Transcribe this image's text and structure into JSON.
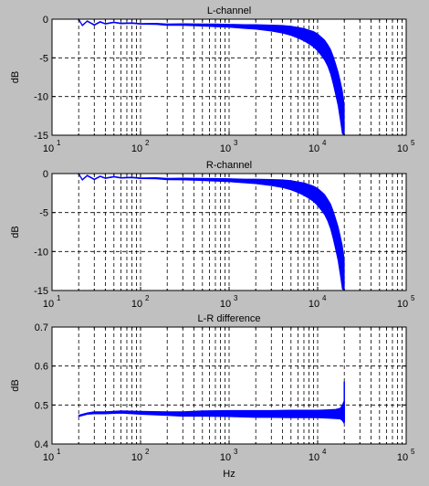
{
  "colors": {
    "figure_bg": "#c0c0c0",
    "axes_bg": "#ffffff",
    "trace": "#0000ff",
    "grid": "#000000"
  },
  "chart_data": [
    {
      "type": "line",
      "title": "L-channel",
      "xlabel": "",
      "ylabel": "dB",
      "xscale": "log",
      "xlim": [
        10,
        100000
      ],
      "ylim": [
        -15,
        0
      ],
      "xticks": [
        10,
        100,
        1000,
        10000,
        100000
      ],
      "yticks": [
        0,
        -5,
        -10,
        -15
      ],
      "ytick_labels": [
        "0",
        "-5",
        "-10",
        "-15"
      ],
      "grid": "dashed, major and minor x, major y",
      "series": [
        {
          "x": [
            20,
            22,
            25,
            30,
            35,
            40,
            50,
            60,
            80,
            100,
            150,
            200,
            300,
            500,
            700,
            1000,
            1500,
            2000,
            3000,
            4000,
            5000,
            6000,
            7000,
            8000,
            9000,
            10000,
            11000,
            12000,
            13000,
            14000,
            15000,
            16000,
            17000,
            18000,
            19000,
            20000
          ],
          "y": [
            0,
            -0.8,
            -0.25,
            -0.75,
            -0.35,
            -0.6,
            -0.4,
            -0.55,
            -0.5,
            -0.6,
            -0.6,
            -0.7,
            -0.7,
            -0.75,
            -0.8,
            -0.85,
            -0.95,
            -1.0,
            -1.15,
            -1.3,
            -1.5,
            -1.75,
            -2.0,
            -2.3,
            -2.6,
            -3.0,
            -3.5,
            -4.0,
            -4.7,
            -5.5,
            -6.6,
            -7.8,
            -9.0,
            -10.5,
            -12.0,
            -14.0
          ],
          "spread": [
            0.05,
            0.05,
            0.05,
            0.05,
            0.05,
            0.05,
            0.05,
            0.05,
            0.05,
            0.06,
            0.08,
            0.1,
            0.12,
            0.15,
            0.18,
            0.2,
            0.25,
            0.3,
            0.4,
            0.5,
            0.6,
            0.7,
            0.8,
            0.9,
            1.0,
            1.1,
            1.2,
            1.3,
            1.4,
            1.6,
            1.8,
            2.0,
            2.2,
            2.5,
            2.8,
            3.0
          ]
        }
      ]
    },
    {
      "type": "line",
      "title": "R-channel",
      "xlabel": "",
      "ylabel": "dB",
      "xscale": "log",
      "xlim": [
        10,
        100000
      ],
      "ylim": [
        -15,
        0
      ],
      "xticks": [
        10,
        100,
        1000,
        10000,
        100000
      ],
      "yticks": [
        0,
        -5,
        -10,
        -15
      ],
      "ytick_labels": [
        "0",
        "-5",
        "-10",
        "-15"
      ],
      "grid": "dashed, major and minor x, major y",
      "series": [
        {
          "x": [
            20,
            22,
            25,
            30,
            35,
            40,
            50,
            60,
            80,
            100,
            150,
            200,
            300,
            500,
            700,
            1000,
            1500,
            2000,
            3000,
            4000,
            5000,
            6000,
            7000,
            8000,
            9000,
            10000,
            11000,
            12000,
            13000,
            14000,
            15000,
            16000,
            17000,
            18000,
            19000,
            20000
          ],
          "y": [
            0,
            -0.8,
            -0.25,
            -0.75,
            -0.35,
            -0.6,
            -0.4,
            -0.55,
            -0.5,
            -0.6,
            -0.6,
            -0.7,
            -0.7,
            -0.75,
            -0.8,
            -0.85,
            -0.95,
            -1.0,
            -1.15,
            -1.3,
            -1.5,
            -1.75,
            -2.0,
            -2.3,
            -2.6,
            -3.0,
            -3.5,
            -4.0,
            -4.7,
            -5.5,
            -6.6,
            -7.8,
            -9.0,
            -10.5,
            -12.0,
            -14.0
          ],
          "spread": [
            0.05,
            0.05,
            0.05,
            0.05,
            0.05,
            0.05,
            0.05,
            0.05,
            0.05,
            0.06,
            0.08,
            0.1,
            0.12,
            0.15,
            0.18,
            0.2,
            0.25,
            0.3,
            0.4,
            0.5,
            0.6,
            0.7,
            0.8,
            0.9,
            1.0,
            1.1,
            1.2,
            1.3,
            1.4,
            1.6,
            1.8,
            2.0,
            2.2,
            2.5,
            2.8,
            3.0
          ]
        }
      ]
    },
    {
      "type": "line",
      "title": "L-R difference",
      "xlabel": "Hz",
      "ylabel": "dB",
      "xscale": "log",
      "xlim": [
        10,
        100000
      ],
      "ylim": [
        0.4,
        0.7
      ],
      "xticks": [
        10,
        100,
        1000,
        10000,
        100000
      ],
      "yticks": [
        0.7,
        0.6,
        0.5,
        0.4
      ],
      "ytick_labels": [
        "0.7",
        "0.6",
        "0.5",
        "0.4"
      ],
      "grid": "dashed, major and minor x, major y",
      "series": [
        {
          "x": [
            20,
            25,
            30,
            40,
            60,
            100,
            200,
            300,
            500,
            1000,
            2000,
            3000,
            5000,
            8000,
            10000,
            13000,
            16000,
            18000,
            19000,
            20000
          ],
          "y": [
            0.472,
            0.478,
            0.48,
            0.48,
            0.482,
            0.48,
            0.478,
            0.477,
            0.478,
            0.478,
            0.477,
            0.477,
            0.477,
            0.477,
            0.477,
            0.477,
            0.477,
            0.478,
            0.48,
            0.482
          ],
          "spread": [
            0.002,
            0.002,
            0.003,
            0.003,
            0.003,
            0.004,
            0.005,
            0.006,
            0.007,
            0.008,
            0.009,
            0.009,
            0.01,
            0.01,
            0.01,
            0.011,
            0.012,
            0.014,
            0.02,
            0.03
          ],
          "spike": {
            "x": 20000,
            "y": [
              0.455,
              0.56
            ]
          }
        }
      ]
    }
  ]
}
